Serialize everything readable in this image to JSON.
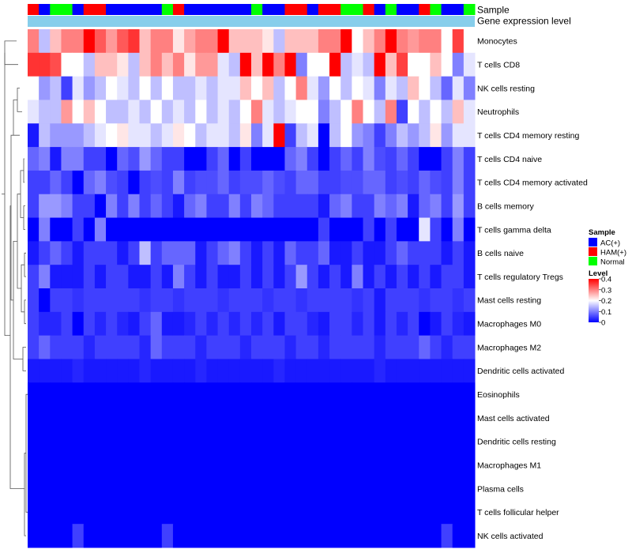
{
  "chart_data": {
    "type": "heatmap",
    "title": "",
    "annotations": {
      "sample_label": "Sample",
      "gene_expression_label": "Gene expression level",
      "sample_groups": [
        "HAM(+)",
        "AC(+)",
        "Normal",
        "Normal",
        "AC(+)",
        "HAM(+)",
        "HAM(+)",
        "AC(+)",
        "AC(+)",
        "AC(+)",
        "AC(+)",
        "AC(+)",
        "Normal",
        "HAM(+)",
        "AC(+)",
        "AC(+)",
        "AC(+)",
        "AC(+)",
        "AC(+)",
        "AC(+)",
        "Normal",
        "AC(+)",
        "AC(+)",
        "HAM(+)",
        "HAM(+)",
        "AC(+)",
        "HAM(+)",
        "HAM(+)",
        "Normal",
        "Normal",
        "HAM(+)",
        "AC(+)",
        "Normal",
        "AC(+)",
        "AC(+)",
        "HAM(+)",
        "Normal",
        "AC(+)",
        "AC(+)",
        "Normal"
      ]
    },
    "rows": [
      "Monocytes",
      "T cells CD8",
      "NK cells resting",
      "Neutrophils",
      "T cells CD4 memory resting",
      "T cells CD4 naive",
      "T cells CD4 memory activated",
      "B cells memory",
      "T cells gamma delta",
      "B cells naive",
      "T cells regulatory  Tregs",
      "Mast cells resting",
      "Macrophages M0",
      "Macrophages M2",
      "Dendritic cells activated",
      "Eosinophils",
      "Mast cells activated",
      "Dendritic cells resting",
      "Macrophages M1",
      "Plasma cells",
      "T cells follicular helper",
      "NK cells activated"
    ],
    "values": [
      [
        0.3,
        0.15,
        0.25,
        0.3,
        0.3,
        0.4,
        0.33,
        0.28,
        0.33,
        0.36,
        0.25,
        0.3,
        0.3,
        0.22,
        0.27,
        0.3,
        0.3,
        0.4,
        0.25,
        0.25,
        0.25,
        0.22,
        0.15,
        0.25,
        0.25,
        0.25,
        0.3,
        0.3,
        0.4,
        0.2,
        0.25,
        0.3,
        0.4,
        0.3,
        0.28,
        0.3,
        0.3,
        0.2,
        0.35,
        0.2
      ],
      [
        0.36,
        0.36,
        0.34,
        0.2,
        0.2,
        0.15,
        0.25,
        0.25,
        0.22,
        0.15,
        0.25,
        0.3,
        0.25,
        0.3,
        0.22,
        0.28,
        0.28,
        0.18,
        0.15,
        0.4,
        0.25,
        0.4,
        0.3,
        0.4,
        0.1,
        0.2,
        0.2,
        0.4,
        0.15,
        0.18,
        0.15,
        0.4,
        0.25,
        0.35,
        0.2,
        0.2,
        0.25,
        0.2,
        0.1,
        0.18
      ],
      [
        0.2,
        0.12,
        0.15,
        0.05,
        0.18,
        0.12,
        0.15,
        0.2,
        0.18,
        0.15,
        0.2,
        0.15,
        0.2,
        0.15,
        0.15,
        0.18,
        0.15,
        0.18,
        0.18,
        0.25,
        0.2,
        0.25,
        0.15,
        0.2,
        0.3,
        0.18,
        0.12,
        0.2,
        0.15,
        0.2,
        0.18,
        0.1,
        0.18,
        0.15,
        0.25,
        0.2,
        0.15,
        0.08,
        0.18,
        0.1
      ],
      [
        0.18,
        0.15,
        0.15,
        0.28,
        0.2,
        0.25,
        0.2,
        0.15,
        0.15,
        0.18,
        0.15,
        0.2,
        0.15,
        0.18,
        0.15,
        0.2,
        0.15,
        0.18,
        0.15,
        0.2,
        0.3,
        0.18,
        0.15,
        0.18,
        0.2,
        0.2,
        0.1,
        0.15,
        0.2,
        0.3,
        0.2,
        0.15,
        0.3,
        0.05,
        0.2,
        0.15,
        0.2,
        0.15,
        0.25,
        0.18
      ],
      [
        0.02,
        0.15,
        0.12,
        0.12,
        0.12,
        0.15,
        0.18,
        0.2,
        0.22,
        0.18,
        0.18,
        0.15,
        0.18,
        0.22,
        0.2,
        0.15,
        0.18,
        0.18,
        0.15,
        0.22,
        0.1,
        0.18,
        0.4,
        0.05,
        0.15,
        0.18,
        0.0,
        0.15,
        0.2,
        0.12,
        0.1,
        0.05,
        0.1,
        0.15,
        0.12,
        0.15,
        0.22,
        0.12,
        0.18,
        0.18
      ],
      [
        0.08,
        0.1,
        0.02,
        0.1,
        0.1,
        0.05,
        0.05,
        0.0,
        0.08,
        0.06,
        0.12,
        0.08,
        0.05,
        0.05,
        0.0,
        0.0,
        0.05,
        0.08,
        0.0,
        0.05,
        0.0,
        0.0,
        0.0,
        0.08,
        0.1,
        0.05,
        0.0,
        0.05,
        0.08,
        0.05,
        0.1,
        0.06,
        0.05,
        0.08,
        0.05,
        0.0,
        0.0,
        0.05,
        0.1,
        0.05
      ],
      [
        0.05,
        0.05,
        0.08,
        0.05,
        0.0,
        0.08,
        0.1,
        0.06,
        0.05,
        0.0,
        0.05,
        0.06,
        0.05,
        0.1,
        0.05,
        0.06,
        0.06,
        0.08,
        0.05,
        0.06,
        0.06,
        0.08,
        0.06,
        0.05,
        0.08,
        0.08,
        0.05,
        0.05,
        0.06,
        0.06,
        0.08,
        0.08,
        0.05,
        0.06,
        0.05,
        0.08,
        0.06,
        0.05,
        0.1,
        0.05
      ],
      [
        0.05,
        0.12,
        0.12,
        0.1,
        0.05,
        0.05,
        0.0,
        0.1,
        0.05,
        0.1,
        0.05,
        0.08,
        0.05,
        0.02,
        0.08,
        0.1,
        0.05,
        0.05,
        0.1,
        0.05,
        0.1,
        0.08,
        0.05,
        0.05,
        0.05,
        0.05,
        0.02,
        0.08,
        0.1,
        0.05,
        0.05,
        0.1,
        0.08,
        0.1,
        0.02,
        0.08,
        0.1,
        0.05,
        0.12,
        0.05
      ],
      [
        0.0,
        0.1,
        0.0,
        0.0,
        0.05,
        0.0,
        0.1,
        0.0,
        0.0,
        0.0,
        0.0,
        0.0,
        0.0,
        0.0,
        0.0,
        0.0,
        0.0,
        0.0,
        0.0,
        0.0,
        0.0,
        0.0,
        0.0,
        0.0,
        0.0,
        0.0,
        0.05,
        0.0,
        0.0,
        0.0,
        0.05,
        0.0,
        0.05,
        0.0,
        0.0,
        0.18,
        0.05,
        0.0,
        0.1,
        0.0
      ],
      [
        0.02,
        0.05,
        0.08,
        0.05,
        0.02,
        0.05,
        0.05,
        0.05,
        0.02,
        0.05,
        0.15,
        0.05,
        0.08,
        0.08,
        0.08,
        0.02,
        0.05,
        0.08,
        0.1,
        0.05,
        0.02,
        0.05,
        0.02,
        0.08,
        0.05,
        0.05,
        0.08,
        0.02,
        0.02,
        0.05,
        0.02,
        0.02,
        0.05,
        0.08,
        0.05,
        0.05,
        0.05,
        0.02,
        0.05,
        0.02
      ],
      [
        0.05,
        0.1,
        0.02,
        0.02,
        0.02,
        0.05,
        0.02,
        0.05,
        0.05,
        0.02,
        0.02,
        0.05,
        0.02,
        0.1,
        0.05,
        0.02,
        0.05,
        0.02,
        0.02,
        0.05,
        0.02,
        0.05,
        0.02,
        0.05,
        0.12,
        0.05,
        0.02,
        0.05,
        0.02,
        0.1,
        0.02,
        0.05,
        0.02,
        0.05,
        0.02,
        0.05,
        0.02,
        0.05,
        0.05,
        0.02
      ],
      [
        0.05,
        0.0,
        0.05,
        0.05,
        0.04,
        0.05,
        0.05,
        0.05,
        0.05,
        0.05,
        0.04,
        0.05,
        0.05,
        0.04,
        0.05,
        0.05,
        0.05,
        0.04,
        0.05,
        0.05,
        0.05,
        0.04,
        0.05,
        0.05,
        0.04,
        0.05,
        0.05,
        0.05,
        0.05,
        0.04,
        0.05,
        0.02,
        0.05,
        0.05,
        0.05,
        0.04,
        0.05,
        0.05,
        0.04,
        0.05
      ],
      [
        0.05,
        0.03,
        0.03,
        0.05,
        0.0,
        0.05,
        0.03,
        0.05,
        0.03,
        0.02,
        0.05,
        0.08,
        0.02,
        0.02,
        0.03,
        0.05,
        0.03,
        0.05,
        0.03,
        0.05,
        0.03,
        0.05,
        0.02,
        0.05,
        0.05,
        0.03,
        0.02,
        0.05,
        0.05,
        0.03,
        0.05,
        0.02,
        0.05,
        0.03,
        0.05,
        0.0,
        0.02,
        0.05,
        0.03,
        0.02
      ],
      [
        0.05,
        0.08,
        0.05,
        0.05,
        0.05,
        0.03,
        0.05,
        0.05,
        0.05,
        0.05,
        0.03,
        0.08,
        0.05,
        0.05,
        0.05,
        0.03,
        0.05,
        0.05,
        0.05,
        0.03,
        0.05,
        0.05,
        0.05,
        0.03,
        0.05,
        0.05,
        0.03,
        0.05,
        0.05,
        0.05,
        0.05,
        0.03,
        0.05,
        0.05,
        0.05,
        0.08,
        0.05,
        0.03,
        0.05,
        0.05
      ],
      [
        0.02,
        0.02,
        0.02,
        0.02,
        0.03,
        0.02,
        0.02,
        0.02,
        0.02,
        0.02,
        0.03,
        0.02,
        0.02,
        0.02,
        0.02,
        0.03,
        0.02,
        0.02,
        0.02,
        0.02,
        0.02,
        0.02,
        0.03,
        0.02,
        0.02,
        0.02,
        0.02,
        0.02,
        0.02,
        0.02,
        0.02,
        0.03,
        0.02,
        0.02,
        0.02,
        0.02,
        0.02,
        0.02,
        0.02,
        0.02
      ],
      [
        0.0,
        0.0,
        0.0,
        0.0,
        0.0,
        0.0,
        0.0,
        0.0,
        0.0,
        0.0,
        0.0,
        0.0,
        0.0,
        0.0,
        0.0,
        0.0,
        0.0,
        0.0,
        0.0,
        0.0,
        0.0,
        0.0,
        0.0,
        0.0,
        0.0,
        0.0,
        0.0,
        0.0,
        0.0,
        0.0,
        0.0,
        0.0,
        0.0,
        0.0,
        0.0,
        0.0,
        0.0,
        0.0,
        0.0,
        0.0
      ],
      [
        0.0,
        0.0,
        0.0,
        0.0,
        0.0,
        0.0,
        0.0,
        0.0,
        0.0,
        0.0,
        0.0,
        0.0,
        0.0,
        0.0,
        0.0,
        0.0,
        0.0,
        0.0,
        0.0,
        0.0,
        0.0,
        0.0,
        0.0,
        0.0,
        0.0,
        0.0,
        0.0,
        0.0,
        0.0,
        0.0,
        0.0,
        0.0,
        0.0,
        0.0,
        0.0,
        0.0,
        0.0,
        0.0,
        0.0,
        0.0
      ],
      [
        0.0,
        0.0,
        0.0,
        0.0,
        0.0,
        0.0,
        0.0,
        0.0,
        0.0,
        0.0,
        0.0,
        0.0,
        0.0,
        0.0,
        0.0,
        0.0,
        0.0,
        0.0,
        0.0,
        0.0,
        0.0,
        0.0,
        0.0,
        0.0,
        0.0,
        0.0,
        0.0,
        0.0,
        0.0,
        0.0,
        0.0,
        0.0,
        0.0,
        0.0,
        0.0,
        0.0,
        0.0,
        0.0,
        0.0,
        0.0
      ],
      [
        0.0,
        0.0,
        0.0,
        0.0,
        0.0,
        0.0,
        0.0,
        0.0,
        0.0,
        0.0,
        0.0,
        0.0,
        0.0,
        0.0,
        0.0,
        0.0,
        0.0,
        0.0,
        0.0,
        0.0,
        0.0,
        0.0,
        0.0,
        0.0,
        0.0,
        0.0,
        0.0,
        0.0,
        0.0,
        0.0,
        0.0,
        0.0,
        0.0,
        0.0,
        0.0,
        0.0,
        0.0,
        0.0,
        0.0,
        0.0
      ],
      [
        0.0,
        0.0,
        0.0,
        0.0,
        0.0,
        0.0,
        0.0,
        0.0,
        0.0,
        0.0,
        0.0,
        0.0,
        0.0,
        0.0,
        0.0,
        0.0,
        0.0,
        0.0,
        0.0,
        0.0,
        0.0,
        0.0,
        0.0,
        0.0,
        0.0,
        0.0,
        0.0,
        0.0,
        0.0,
        0.0,
        0.0,
        0.0,
        0.0,
        0.0,
        0.0,
        0.0,
        0.0,
        0.0,
        0.0,
        0.0
      ],
      [
        0.0,
        0.0,
        0.0,
        0.0,
        0.0,
        0.0,
        0.0,
        0.0,
        0.0,
        0.0,
        0.0,
        0.0,
        0.0,
        0.0,
        0.0,
        0.0,
        0.0,
        0.0,
        0.0,
        0.0,
        0.0,
        0.0,
        0.0,
        0.0,
        0.0,
        0.0,
        0.0,
        0.0,
        0.0,
        0.0,
        0.0,
        0.0,
        0.0,
        0.0,
        0.0,
        0.0,
        0.0,
        0.0,
        0.0,
        0.0
      ],
      [
        0.0,
        0.0,
        0.0,
        0.0,
        0.05,
        0.0,
        0.0,
        0.0,
        0.0,
        0.0,
        0.0,
        0.0,
        0.05,
        0.0,
        0.0,
        0.0,
        0.0,
        0.0,
        0.0,
        0.0,
        0.0,
        0.0,
        0.0,
        0.0,
        0.0,
        0.0,
        0.0,
        0.0,
        0.0,
        0.0,
        0.0,
        0.0,
        0.0,
        0.0,
        0.0,
        0.0,
        0.0,
        0.05,
        0.0,
        0.0
      ]
    ],
    "legend": {
      "sample_title": "Sample",
      "sample_entries": [
        {
          "label": "AC(+)",
          "color": "#0000ff"
        },
        {
          "label": "HAM(+)",
          "color": "#ff0000"
        },
        {
          "label": "Normal",
          "color": "#00ff00"
        }
      ],
      "level_title": "Level",
      "level_ticks": [
        "0.4",
        "0.3",
        "0.2",
        "0.1",
        "0"
      ],
      "level_range": [
        0,
        0.4
      ]
    },
    "colors": {
      "low": "#0000ff",
      "mid": "#ffffff",
      "high": "#ff0000",
      "gene_expression_bar": "#87ceeb"
    }
  }
}
